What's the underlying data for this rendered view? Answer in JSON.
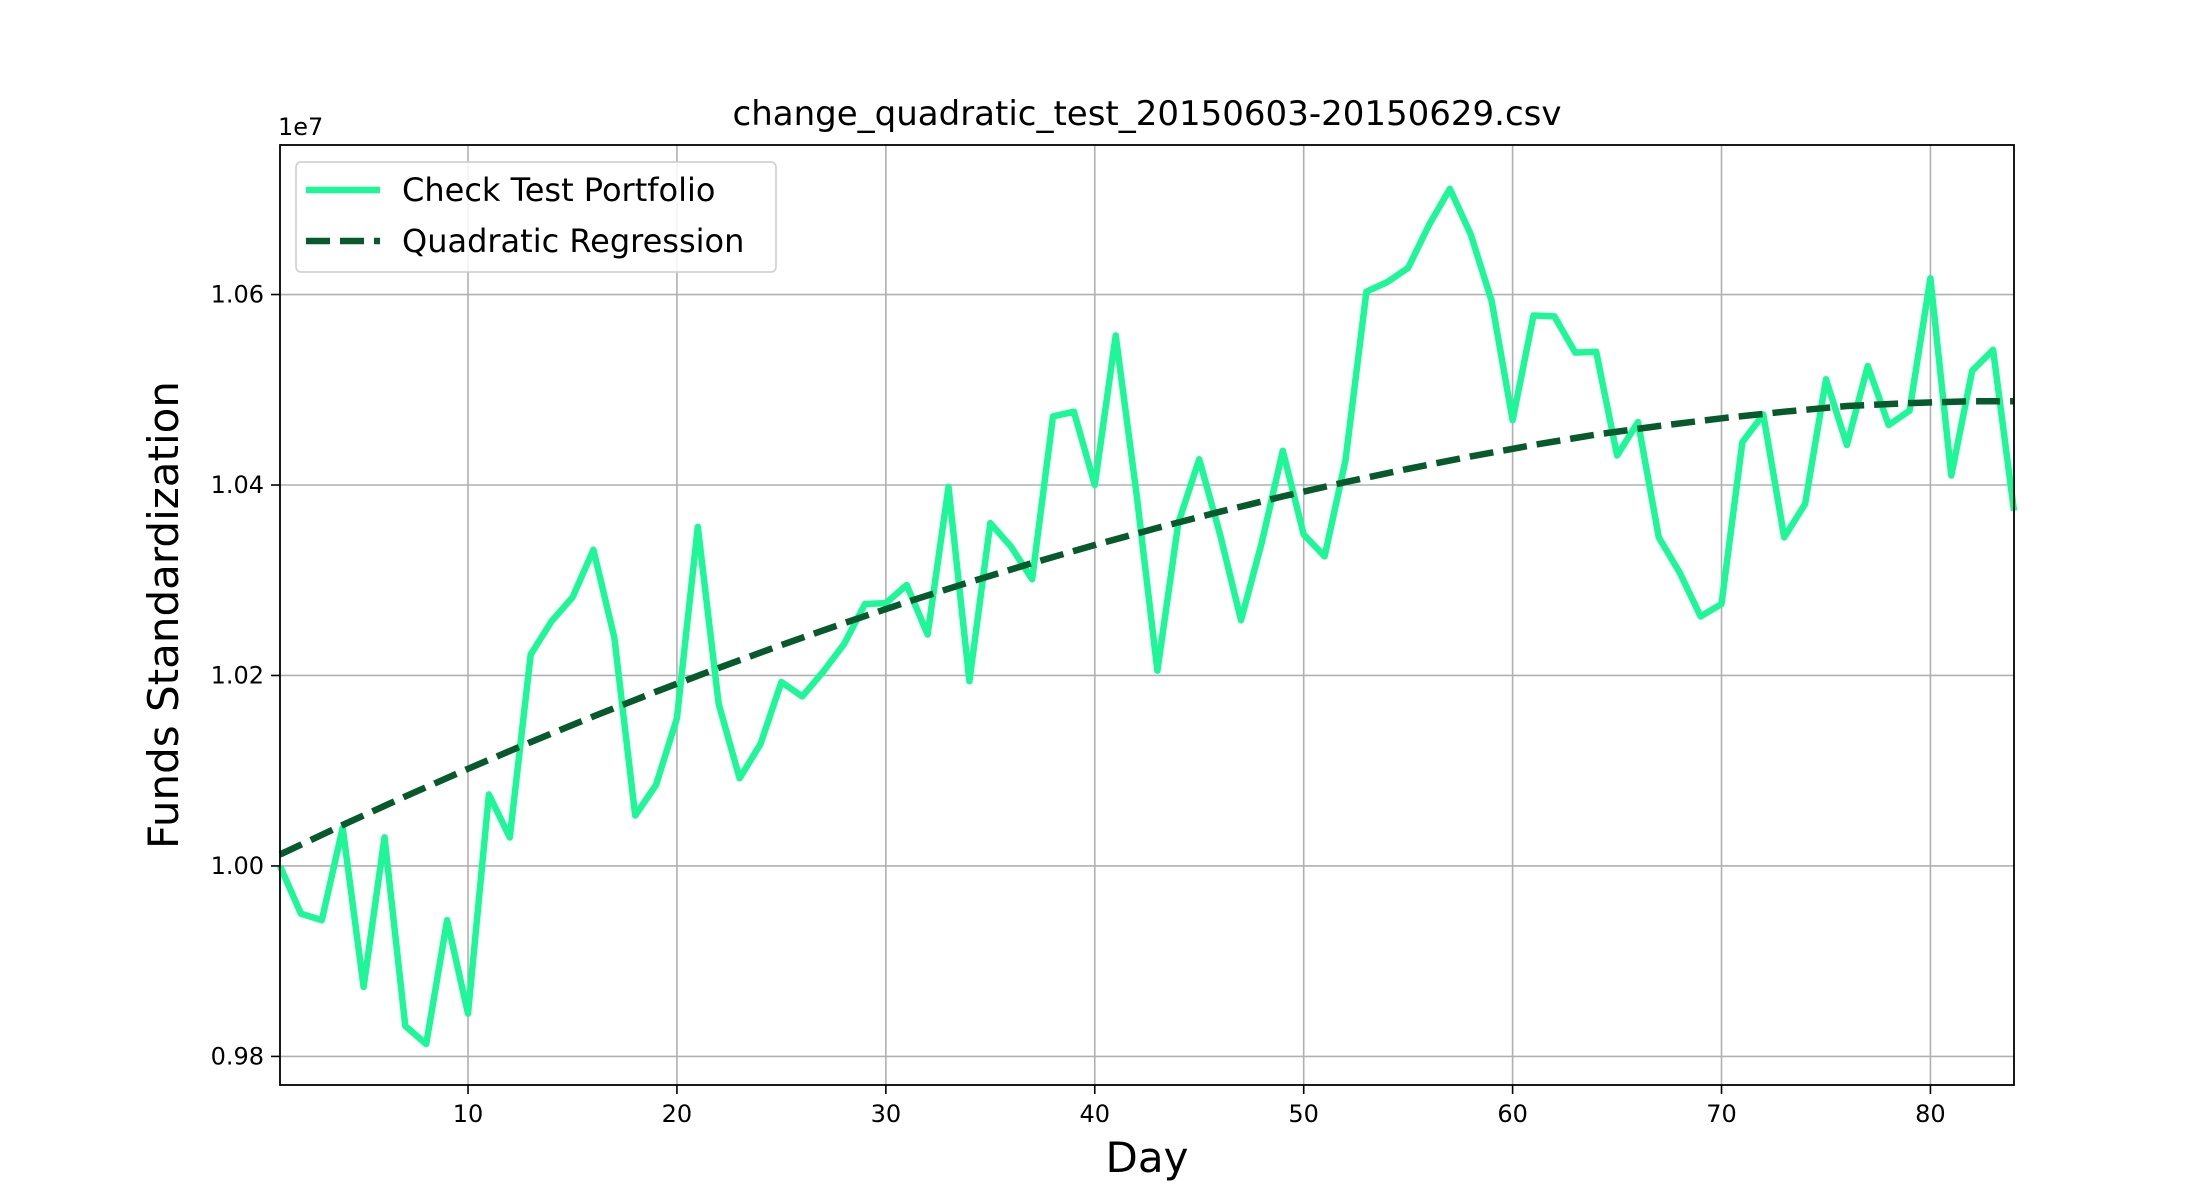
{
  "chart_data": {
    "type": "line",
    "title": "change_quadratic_test_20150603-20150629.csv",
    "xlabel": "Day",
    "ylabel": "Funds Standardization",
    "y_offset_text": "1e7",
    "xlim": [
      1,
      84
    ],
    "ylim": [
      0.977,
      1.0757
    ],
    "x_ticks": [
      10,
      20,
      30,
      40,
      50,
      60,
      70,
      80
    ],
    "y_ticks": [
      0.98,
      1.0,
      1.02,
      1.04,
      1.06
    ],
    "y_tick_labels": [
      "0.98",
      "1.00",
      "1.02",
      "1.04",
      "1.06"
    ],
    "grid": true,
    "legend_position": "top-left",
    "series": [
      {
        "name": "Check Test Portfolio",
        "color": "#1ef797",
        "style": "solid",
        "x": [
          1,
          2,
          3,
          4,
          5,
          6,
          7,
          8,
          9,
          10,
          11,
          12,
          13,
          14,
          15,
          16,
          17,
          18,
          19,
          20,
          21,
          22,
          23,
          24,
          25,
          26,
          27,
          28,
          29,
          30,
          31,
          32,
          33,
          34,
          35,
          36,
          37,
          38,
          39,
          40,
          41,
          42,
          43,
          44,
          45,
          46,
          47,
          48,
          49,
          50,
          51,
          52,
          53,
          54,
          55,
          56,
          57,
          58,
          59,
          60,
          61,
          62,
          63,
          64,
          65,
          66,
          67,
          68,
          69,
          70,
          71,
          72,
          73,
          74,
          75,
          76,
          77,
          78,
          79,
          80,
          81,
          82,
          83,
          84
        ],
        "values": [
          1.0,
          0.995,
          0.9943,
          1.004,
          0.9873,
          1.003,
          0.9832,
          0.9813,
          0.9943,
          0.9845,
          1.0075,
          1.003,
          1.0222,
          1.0257,
          1.0282,
          1.0332,
          1.024,
          1.0053,
          1.0085,
          1.0155,
          1.0356,
          1.017,
          1.0092,
          1.0128,
          1.0193,
          1.0178,
          1.0204,
          1.0233,
          1.0275,
          1.0276,
          1.0295,
          1.0243,
          1.0398,
          1.0194,
          1.036,
          1.0335,
          1.0301,
          1.0472,
          1.0477,
          1.04,
          1.0557,
          1.039,
          1.0205,
          1.036,
          1.0427,
          1.0348,
          1.0258,
          1.034,
          1.0436,
          1.0348,
          1.0325,
          1.0426,
          1.0603,
          1.0613,
          1.0628,
          1.0673,
          1.0711,
          1.0663,
          1.0593,
          1.0468,
          1.0578,
          1.0577,
          1.0539,
          1.054,
          1.0431,
          1.0466,
          1.0345,
          1.0308,
          1.0262,
          1.0275,
          1.0445,
          1.0474,
          1.0345,
          1.038,
          1.0511,
          1.0442,
          1.0525,
          1.0463,
          1.0478,
          1.0617,
          1.041,
          1.052,
          1.0542,
          1.0373
        ]
      },
      {
        "name": "Quadratic Regression",
        "color": "#075a2c",
        "style": "dashed",
        "x": [
          1,
          4,
          7,
          10,
          13,
          16,
          19,
          22,
          25,
          28,
          31,
          34,
          37,
          40,
          43,
          46,
          49,
          52,
          55,
          58,
          61,
          64,
          67,
          70,
          73,
          76,
          79,
          82,
          84
        ],
        "values": [
          1.0012,
          1.0043,
          1.0073,
          1.0102,
          1.013,
          1.0157,
          1.0183,
          1.0208,
          1.0232,
          1.0255,
          1.0277,
          1.0298,
          1.0318,
          1.0337,
          1.0355,
          1.0372,
          1.0388,
          1.0403,
          1.0417,
          1.043,
          1.0442,
          1.0453,
          1.0462,
          1.047,
          1.0477,
          1.0483,
          1.0486,
          1.0488,
          1.0488
        ]
      }
    ]
  }
}
